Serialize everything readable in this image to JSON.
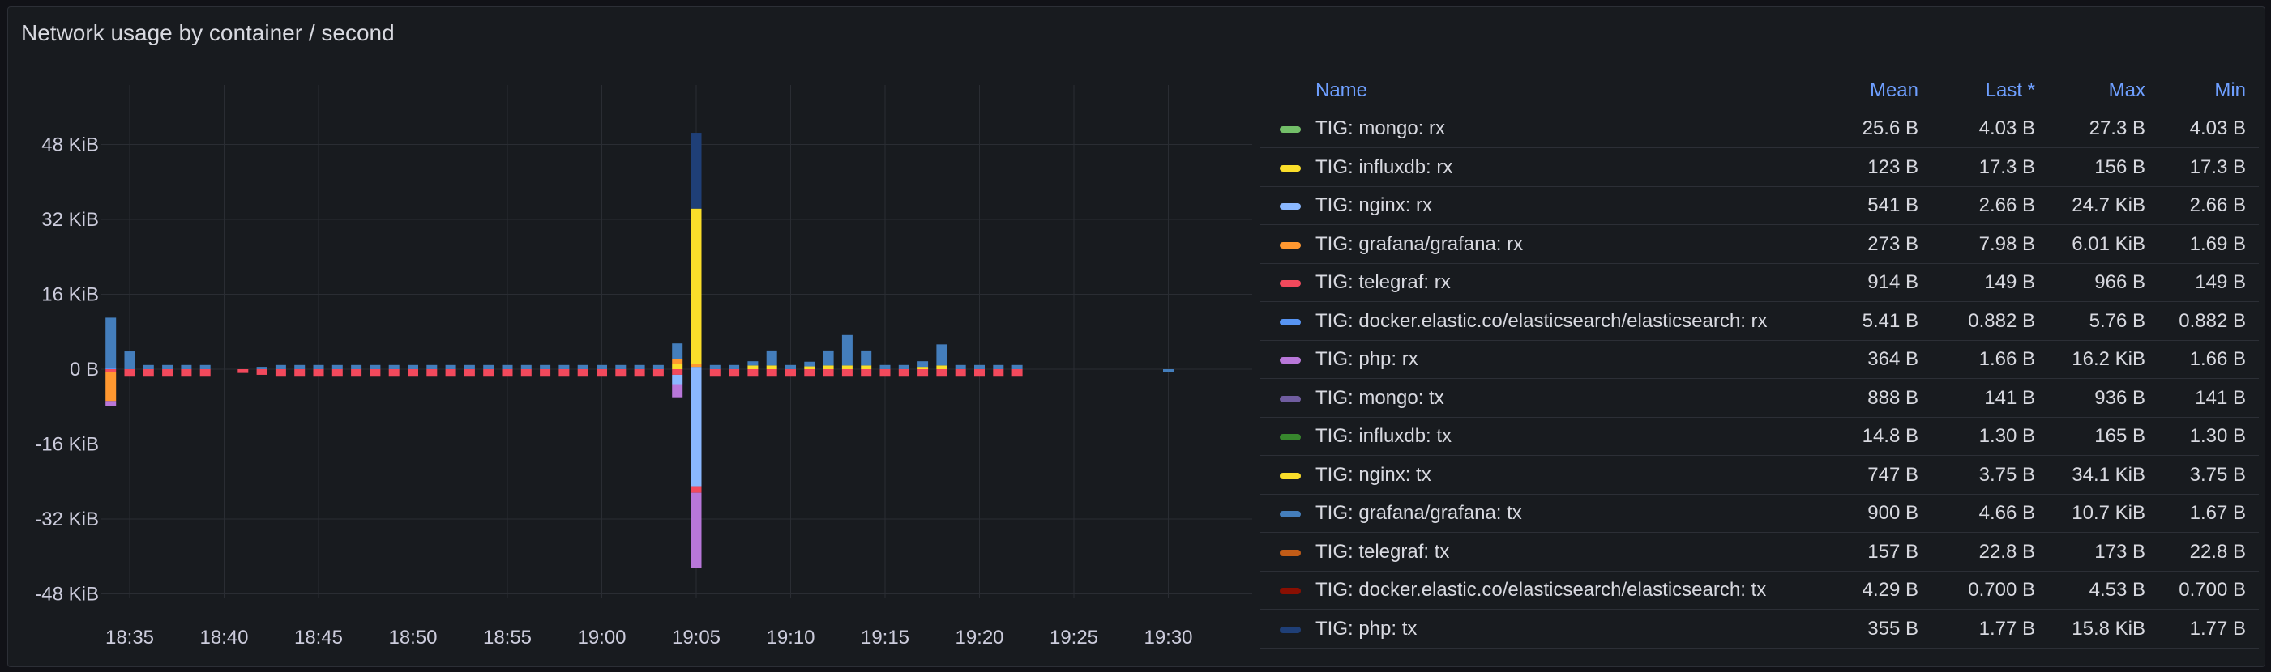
{
  "panel": {
    "title": "Network usage by container / second"
  },
  "legend": {
    "headers": {
      "name": "Name",
      "mean": "Mean",
      "last": "Last *",
      "max": "Max",
      "min": "Min"
    },
    "rows": [
      {
        "name": "TIG: mongo: rx",
        "color": "#73bf69",
        "mean": "25.6 B",
        "last": "4.03 B",
        "max": "27.3 B",
        "min": "4.03 B"
      },
      {
        "name": "TIG: influxdb: rx",
        "color": "#fade2a",
        "mean": "123 B",
        "last": "17.3 B",
        "max": "156 B",
        "min": "17.3 B"
      },
      {
        "name": "TIG: nginx: rx",
        "color": "#8ab8ff",
        "mean": "541 B",
        "last": "2.66 B",
        "max": "24.7 KiB",
        "min": "2.66 B"
      },
      {
        "name": "TIG: grafana/grafana: rx",
        "color": "#ff9830",
        "mean": "273 B",
        "last": "7.98 B",
        "max": "6.01 KiB",
        "min": "1.69 B"
      },
      {
        "name": "TIG: telegraf: rx",
        "color": "#f2495c",
        "mean": "914 B",
        "last": "149 B",
        "max": "966 B",
        "min": "149 B"
      },
      {
        "name": "TIG: docker.elastic.co/elasticsearch/elasticsearch: rx",
        "color": "#5794f2",
        "mean": "5.41 B",
        "last": "0.882 B",
        "max": "5.76 B",
        "min": "0.882 B"
      },
      {
        "name": "TIG: php: rx",
        "color": "#b877d9",
        "mean": "364 B",
        "last": "1.66 B",
        "max": "16.2 KiB",
        "min": "1.66 B"
      },
      {
        "name": "TIG: mongo: tx",
        "color": "#705da0",
        "mean": "888 B",
        "last": "141 B",
        "max": "936 B",
        "min": "141 B"
      },
      {
        "name": "TIG: influxdb: tx",
        "color": "#37872d",
        "mean": "14.8 B",
        "last": "1.30 B",
        "max": "165 B",
        "min": "1.30 B"
      },
      {
        "name": "TIG: nginx: tx",
        "color": "#fade2a",
        "mean": "747 B",
        "last": "3.75 B",
        "max": "34.1 KiB",
        "min": "3.75 B"
      },
      {
        "name": "TIG: grafana/grafana: tx",
        "color": "#447ebc",
        "mean": "900 B",
        "last": "4.66 B",
        "max": "10.7 KiB",
        "min": "1.67 B"
      },
      {
        "name": "TIG: telegraf: tx",
        "color": "#c15c17",
        "mean": "157 B",
        "last": "22.8 B",
        "max": "173 B",
        "min": "22.8 B"
      },
      {
        "name": "TIG: docker.elastic.co/elasticsearch/elasticsearch: tx",
        "color": "#890f02",
        "mean": "4.29 B",
        "last": "0.700 B",
        "max": "4.53 B",
        "min": "0.700 B"
      },
      {
        "name": "TIG: php: tx",
        "color": "#1f3f77",
        "mean": "355 B",
        "last": "1.77 B",
        "max": "15.8 KiB",
        "min": "1.77 B"
      }
    ]
  },
  "chart_data": {
    "type": "bar",
    "title": "Network usage by container / second",
    "xlabel": "",
    "ylabel": "",
    "unit": "KiB",
    "ylim": [
      -55,
      55
    ],
    "grid": true,
    "legend_placement": "right",
    "y_ticks": [
      {
        "value": 48,
        "label": "48 KiB"
      },
      {
        "value": 32,
        "label": "32 KiB"
      },
      {
        "value": 16,
        "label": "16 KiB"
      },
      {
        "value": 0,
        "label": "0 B"
      },
      {
        "value": -16,
        "label": "-16 KiB"
      },
      {
        "value": -32,
        "label": "-32 KiB"
      },
      {
        "value": -48,
        "label": "-48 KiB"
      }
    ],
    "x_ticks": [
      {
        "minute": 35,
        "label": "18:35"
      },
      {
        "minute": 40,
        "label": "18:40"
      },
      {
        "minute": 45,
        "label": "18:45"
      },
      {
        "minute": 50,
        "label": "18:50"
      },
      {
        "minute": 55,
        "label": "18:55"
      },
      {
        "minute": 60,
        "label": "19:00"
      },
      {
        "minute": 65,
        "label": "19:05"
      },
      {
        "minute": 70,
        "label": "19:10"
      },
      {
        "minute": 75,
        "label": "19:15"
      },
      {
        "minute": 80,
        "label": "19:20"
      },
      {
        "minute": 85,
        "label": "19:25"
      },
      {
        "minute": 90,
        "label": "19:30"
      }
    ],
    "bars": [
      {
        "minute": 34,
        "pos": [
          [
            "#5794f2",
            0.2
          ],
          [
            "#447ebc",
            10.8
          ]
        ],
        "neg": [
          [
            "#f2495c",
            0.6
          ],
          [
            "#ff9830",
            6.2
          ],
          [
            "#b877d9",
            1.0
          ]
        ]
      },
      {
        "minute": 35,
        "pos": [
          [
            "#447ebc",
            3.8
          ]
        ],
        "neg": [
          [
            "#f2495c",
            1.6
          ]
        ]
      },
      {
        "minute": 36,
        "pos": [
          [
            "#447ebc",
            0.9
          ]
        ],
        "neg": [
          [
            "#f2495c",
            1.6
          ]
        ]
      },
      {
        "minute": 37,
        "pos": [
          [
            "#447ebc",
            0.9
          ]
        ],
        "neg": [
          [
            "#f2495c",
            1.6
          ]
        ]
      },
      {
        "minute": 38,
        "pos": [
          [
            "#447ebc",
            0.9
          ]
        ],
        "neg": [
          [
            "#f2495c",
            1.6
          ]
        ]
      },
      {
        "minute": 39,
        "pos": [
          [
            "#447ebc",
            0.9
          ]
        ],
        "neg": [
          [
            "#f2495c",
            1.6
          ]
        ]
      },
      {
        "minute": 41,
        "pos": [],
        "neg": [
          [
            "#f2495c",
            0.8
          ]
        ]
      },
      {
        "minute": 42,
        "pos": [
          [
            "#447ebc",
            0.5
          ]
        ],
        "neg": [
          [
            "#f2495c",
            1.2
          ]
        ]
      },
      {
        "minute": 43,
        "pos": [
          [
            "#447ebc",
            0.9
          ]
        ],
        "neg": [
          [
            "#f2495c",
            1.6
          ]
        ]
      },
      {
        "minute": 44,
        "pos": [
          [
            "#447ebc",
            0.9
          ]
        ],
        "neg": [
          [
            "#f2495c",
            1.6
          ]
        ]
      },
      {
        "minute": 45,
        "pos": [
          [
            "#447ebc",
            0.9
          ]
        ],
        "neg": [
          [
            "#f2495c",
            1.6
          ]
        ]
      },
      {
        "minute": 46,
        "pos": [
          [
            "#447ebc",
            0.9
          ]
        ],
        "neg": [
          [
            "#f2495c",
            1.6
          ]
        ]
      },
      {
        "minute": 47,
        "pos": [
          [
            "#447ebc",
            0.9
          ]
        ],
        "neg": [
          [
            "#f2495c",
            1.6
          ]
        ]
      },
      {
        "minute": 48,
        "pos": [
          [
            "#447ebc",
            0.9
          ]
        ],
        "neg": [
          [
            "#f2495c",
            1.6
          ]
        ]
      },
      {
        "minute": 49,
        "pos": [
          [
            "#447ebc",
            0.9
          ]
        ],
        "neg": [
          [
            "#f2495c",
            1.6
          ]
        ]
      },
      {
        "minute": 50,
        "pos": [
          [
            "#447ebc",
            0.9
          ]
        ],
        "neg": [
          [
            "#f2495c",
            1.6
          ]
        ]
      },
      {
        "minute": 51,
        "pos": [
          [
            "#447ebc",
            0.9
          ]
        ],
        "neg": [
          [
            "#f2495c",
            1.6
          ]
        ]
      },
      {
        "minute": 52,
        "pos": [
          [
            "#447ebc",
            0.9
          ]
        ],
        "neg": [
          [
            "#f2495c",
            1.6
          ]
        ]
      },
      {
        "minute": 53,
        "pos": [
          [
            "#447ebc",
            0.9
          ]
        ],
        "neg": [
          [
            "#f2495c",
            1.6
          ]
        ]
      },
      {
        "minute": 54,
        "pos": [
          [
            "#447ebc",
            0.9
          ]
        ],
        "neg": [
          [
            "#f2495c",
            1.6
          ]
        ]
      },
      {
        "minute": 55,
        "pos": [
          [
            "#447ebc",
            0.9
          ]
        ],
        "neg": [
          [
            "#f2495c",
            1.6
          ]
        ]
      },
      {
        "minute": 56,
        "pos": [
          [
            "#447ebc",
            0.9
          ]
        ],
        "neg": [
          [
            "#f2495c",
            1.6
          ]
        ]
      },
      {
        "minute": 57,
        "pos": [
          [
            "#447ebc",
            0.9
          ]
        ],
        "neg": [
          [
            "#f2495c",
            1.6
          ]
        ]
      },
      {
        "minute": 58,
        "pos": [
          [
            "#447ebc",
            0.9
          ]
        ],
        "neg": [
          [
            "#f2495c",
            1.6
          ]
        ]
      },
      {
        "minute": 59,
        "pos": [
          [
            "#447ebc",
            0.9
          ]
        ],
        "neg": [
          [
            "#f2495c",
            1.6
          ]
        ]
      },
      {
        "minute": 60,
        "pos": [
          [
            "#447ebc",
            0.9
          ]
        ],
        "neg": [
          [
            "#f2495c",
            1.6
          ]
        ]
      },
      {
        "minute": 61,
        "pos": [
          [
            "#447ebc",
            0.9
          ]
        ],
        "neg": [
          [
            "#f2495c",
            1.6
          ]
        ]
      },
      {
        "minute": 62,
        "pos": [
          [
            "#447ebc",
            0.9
          ]
        ],
        "neg": [
          [
            "#f2495c",
            1.6
          ]
        ]
      },
      {
        "minute": 63,
        "pos": [
          [
            "#447ebc",
            0.9
          ]
        ],
        "neg": [
          [
            "#f2495c",
            1.6
          ]
        ]
      },
      {
        "minute": 64,
        "pos": [
          [
            "#fade2a",
            1.2
          ],
          [
            "#ff9830",
            1.0
          ],
          [
            "#447ebc",
            3.3
          ]
        ],
        "neg": [
          [
            "#f2495c",
            1.2
          ],
          [
            "#8ab8ff",
            2.0
          ],
          [
            "#b877d9",
            2.8
          ]
        ]
      },
      {
        "minute": 65,
        "pos": [
          [
            "#8ab8ff",
            0.5
          ],
          [
            "#ff9830",
            0.6
          ],
          [
            "#fade2a",
            33.2
          ],
          [
            "#1f3f77",
            16.2
          ]
        ],
        "neg": [
          [
            "#8ab8ff",
            25.0
          ],
          [
            "#f2495c",
            1.4
          ],
          [
            "#b877d9",
            16.0
          ]
        ]
      },
      {
        "minute": 66,
        "pos": [
          [
            "#447ebc",
            0.9
          ]
        ],
        "neg": [
          [
            "#f2495c",
            1.6
          ]
        ]
      },
      {
        "minute": 67,
        "pos": [
          [
            "#447ebc",
            0.9
          ]
        ],
        "neg": [
          [
            "#f2495c",
            1.6
          ]
        ]
      },
      {
        "minute": 68,
        "pos": [
          [
            "#fade2a",
            0.8
          ],
          [
            "#447ebc",
            0.9
          ]
        ],
        "neg": [
          [
            "#f2495c",
            1.6
          ]
        ]
      },
      {
        "minute": 69,
        "pos": [
          [
            "#fade2a",
            0.8
          ],
          [
            "#447ebc",
            3.2
          ]
        ],
        "neg": [
          [
            "#f2495c",
            1.6
          ]
        ]
      },
      {
        "minute": 70,
        "pos": [
          [
            "#447ebc",
            0.9
          ]
        ],
        "neg": [
          [
            "#f2495c",
            1.6
          ]
        ]
      },
      {
        "minute": 71,
        "pos": [
          [
            "#fade2a",
            0.6
          ],
          [
            "#447ebc",
            1.0
          ]
        ],
        "neg": [
          [
            "#f2495c",
            1.6
          ]
        ]
      },
      {
        "minute": 72,
        "pos": [
          [
            "#fade2a",
            0.8
          ],
          [
            "#447ebc",
            3.2
          ]
        ],
        "neg": [
          [
            "#f2495c",
            1.6
          ]
        ]
      },
      {
        "minute": 73,
        "pos": [
          [
            "#fade2a",
            0.8
          ],
          [
            "#447ebc",
            6.5
          ]
        ],
        "neg": [
          [
            "#f2495c",
            1.6
          ]
        ]
      },
      {
        "minute": 74,
        "pos": [
          [
            "#fade2a",
            0.8
          ],
          [
            "#447ebc",
            3.2
          ]
        ],
        "neg": [
          [
            "#f2495c",
            1.6
          ]
        ]
      },
      {
        "minute": 75,
        "pos": [
          [
            "#447ebc",
            0.9
          ]
        ],
        "neg": [
          [
            "#f2495c",
            1.6
          ]
        ]
      },
      {
        "minute": 76,
        "pos": [
          [
            "#447ebc",
            0.9
          ]
        ],
        "neg": [
          [
            "#f2495c",
            1.6
          ]
        ]
      },
      {
        "minute": 77,
        "pos": [
          [
            "#fade2a",
            0.5
          ],
          [
            "#447ebc",
            1.2
          ]
        ],
        "neg": [
          [
            "#f2495c",
            1.6
          ]
        ]
      },
      {
        "minute": 78,
        "pos": [
          [
            "#fade2a",
            0.8
          ],
          [
            "#447ebc",
            4.5
          ]
        ],
        "neg": [
          [
            "#f2495c",
            1.6
          ]
        ]
      },
      {
        "minute": 79,
        "pos": [
          [
            "#447ebc",
            0.9
          ]
        ],
        "neg": [
          [
            "#f2495c",
            1.6
          ]
        ]
      },
      {
        "minute": 80,
        "pos": [
          [
            "#447ebc",
            0.9
          ]
        ],
        "neg": [
          [
            "#f2495c",
            1.6
          ]
        ]
      },
      {
        "minute": 81,
        "pos": [
          [
            "#447ebc",
            0.9
          ]
        ],
        "neg": [
          [
            "#f2495c",
            1.6
          ]
        ]
      },
      {
        "minute": 82,
        "pos": [
          [
            "#447ebc",
            0.9
          ]
        ],
        "neg": [
          [
            "#f2495c",
            1.6
          ]
        ]
      },
      {
        "minute": 90,
        "pos": [],
        "neg": [
          [
            "#447ebc",
            0.6
          ]
        ]
      }
    ]
  }
}
